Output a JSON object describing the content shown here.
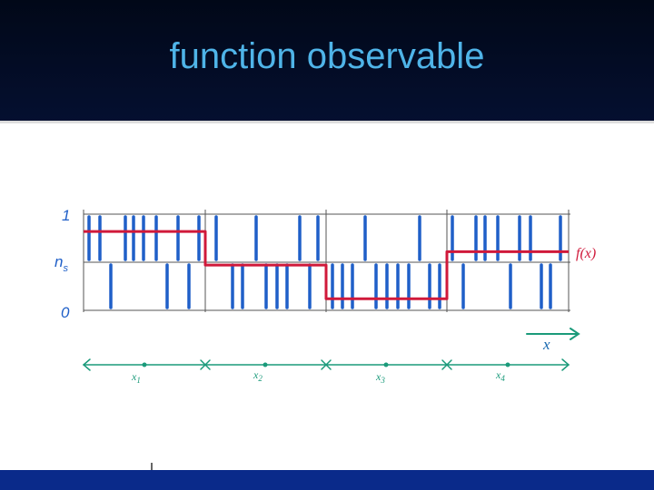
{
  "slide": {
    "title": "function observable"
  },
  "diagram": {
    "y_labels": {
      "top": "1",
      "middle": "n",
      "middle_sub": "s",
      "bottom": "0"
    },
    "function_label": "f(x)",
    "axis_label": "x",
    "cell_labels": [
      {
        "base": "x",
        "sub": "1"
      },
      {
        "base": "x",
        "sub": "2"
      },
      {
        "base": "x",
        "sub": "3"
      },
      {
        "base": "x",
        "sub": "4"
      }
    ],
    "function_levels": [
      0.82,
      0.47,
      0.12,
      0.61
    ],
    "colors": {
      "bars": "#1f5fc8",
      "function": "#d0193a",
      "axis": "#1a9a7a",
      "grid": "#555555"
    }
  }
}
